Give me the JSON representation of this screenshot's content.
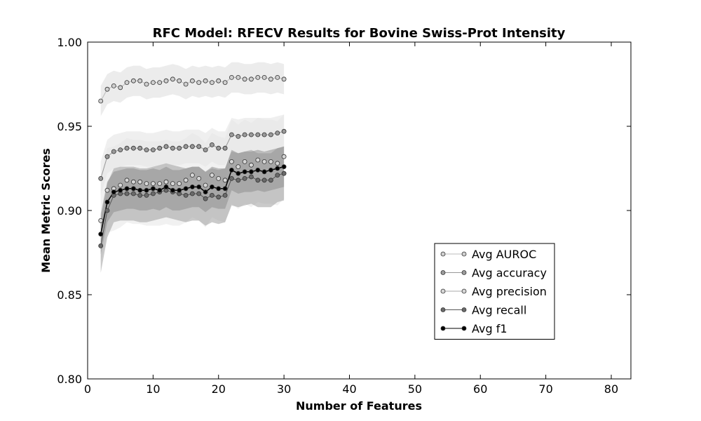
{
  "chart_data": {
    "type": "line",
    "title": "RFC Model: RFECV Results for Bovine Swiss-Prot Intensity",
    "xlabel": "Number of Features",
    "ylabel": "Mean Metric Scores",
    "xlim": [
      0,
      83
    ],
    "ylim": [
      0.8,
      1.0
    ],
    "xticks": [
      0,
      10,
      20,
      30,
      40,
      50,
      60,
      70,
      80
    ],
    "yticks": [
      0.8,
      0.85,
      0.9,
      0.95,
      1.0
    ],
    "xtick_labels": [
      "0",
      "10",
      "20",
      "30",
      "40",
      "50",
      "60",
      "70",
      "80"
    ],
    "ytick_labels": [
      "0.80",
      "0.85",
      "0.90",
      "0.95",
      "1.00"
    ],
    "grid": false,
    "legend_position": "lower-right",
    "x": [
      2,
      3,
      4,
      5,
      6,
      7,
      8,
      9,
      10,
      11,
      12,
      13,
      14,
      15,
      16,
      17,
      18,
      19,
      20,
      21,
      22,
      23,
      24,
      25,
      26,
      27,
      28,
      29,
      30
    ],
    "series": [
      {
        "name": "Avg AUROC",
        "line_color": "#bbbbbb",
        "marker_color": "#cfcfcf",
        "band_color": "#dddddd",
        "band_halfwidth": 0.009,
        "values": [
          0.965,
          0.972,
          0.974,
          0.973,
          0.976,
          0.977,
          0.977,
          0.975,
          0.976,
          0.976,
          0.977,
          0.978,
          0.977,
          0.975,
          0.977,
          0.976,
          0.977,
          0.976,
          0.977,
          0.976,
          0.979,
          0.979,
          0.978,
          0.978,
          0.979,
          0.979,
          0.978,
          0.979,
          0.978
        ]
      },
      {
        "name": "Avg accuracy",
        "line_color": "#999999",
        "marker_color": "#9a9a9a",
        "band_color": "#e2e2e2",
        "band_halfwidth": 0.01,
        "values": [
          0.919,
          0.932,
          0.935,
          0.936,
          0.937,
          0.937,
          0.937,
          0.936,
          0.936,
          0.937,
          0.938,
          0.937,
          0.937,
          0.938,
          0.938,
          0.938,
          0.936,
          0.939,
          0.937,
          0.937,
          0.945,
          0.944,
          0.945,
          0.945,
          0.945,
          0.945,
          0.945,
          0.946,
          0.947
        ]
      },
      {
        "name": "Avg precision",
        "line_color": "#aaaaaa",
        "marker_color": "#d6d6d6",
        "band_color": "#e6e6e6",
        "band_halfwidth": 0.025,
        "values": [
          0.894,
          0.912,
          0.913,
          0.915,
          0.918,
          0.917,
          0.917,
          0.916,
          0.916,
          0.916,
          0.917,
          0.916,
          0.916,
          0.918,
          0.921,
          0.919,
          0.915,
          0.921,
          0.919,
          0.918,
          0.929,
          0.926,
          0.929,
          0.927,
          0.93,
          0.929,
          0.929,
          0.928,
          0.932
        ]
      },
      {
        "name": "Avg recall",
        "line_color": "#555555",
        "marker_color": "#6a6a6a",
        "band_color": "#9e9e9e",
        "band_halfwidth": 0.016,
        "values": [
          0.879,
          0.9,
          0.909,
          0.91,
          0.91,
          0.91,
          0.909,
          0.909,
          0.91,
          0.911,
          0.912,
          0.911,
          0.91,
          0.909,
          0.91,
          0.91,
          0.907,
          0.909,
          0.908,
          0.909,
          0.919,
          0.918,
          0.919,
          0.92,
          0.918,
          0.918,
          0.918,
          0.921,
          0.922
        ]
      },
      {
        "name": "Avg f1",
        "line_color": "#000000",
        "marker_color": "#000000",
        "band_color": "#8f8f8f",
        "band_halfwidth": 0.012,
        "values": [
          0.886,
          0.905,
          0.911,
          0.912,
          0.913,
          0.913,
          0.912,
          0.912,
          0.913,
          0.912,
          0.914,
          0.912,
          0.912,
          0.913,
          0.914,
          0.914,
          0.911,
          0.914,
          0.913,
          0.913,
          0.924,
          0.922,
          0.923,
          0.923,
          0.924,
          0.923,
          0.924,
          0.925,
          0.926
        ]
      }
    ]
  }
}
